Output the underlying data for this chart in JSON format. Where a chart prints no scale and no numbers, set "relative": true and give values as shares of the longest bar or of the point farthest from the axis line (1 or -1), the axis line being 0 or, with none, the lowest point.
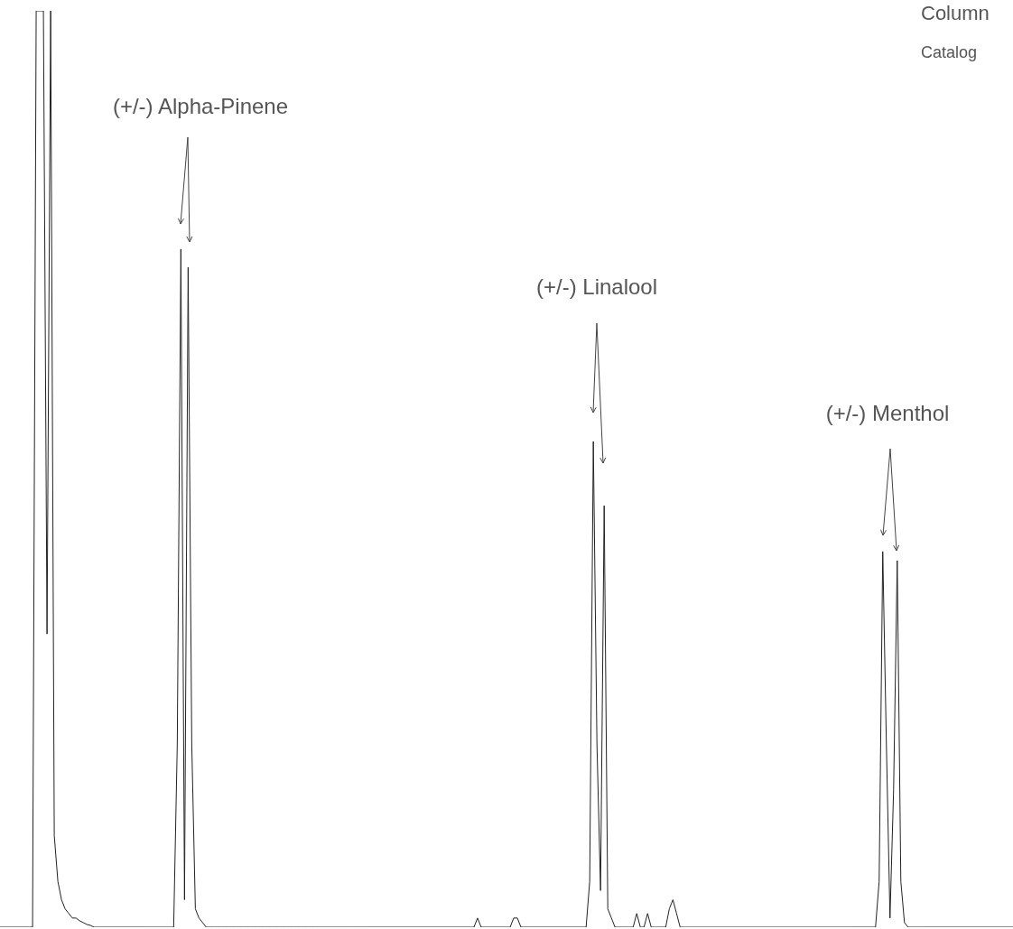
{
  "chart_data": {
    "type": "line",
    "relative": true,
    "color": "#222222",
    "annotations": [
      "(+/-) Alpha-Pinene",
      "(+/-) Linalool",
      "(+/-) Menthol",
      "Column",
      "Catalog"
    ],
    "categories": [
      null,
      null,
      null,
      null,
      null,
      null,
      null,
      null,
      null,
      null,
      null,
      null,
      null,
      null,
      null,
      null,
      null,
      null,
      null,
      null,
      null,
      null,
      null,
      null,
      null,
      null,
      null,
      null,
      null,
      null,
      null,
      null,
      null,
      null,
      null,
      null,
      null,
      null,
      null,
      null,
      null,
      null,
      null,
      null,
      null,
      null,
      null,
      null,
      null,
      null,
      null,
      null,
      null,
      null,
      null,
      null,
      null,
      null,
      null,
      null,
      null,
      null,
      null,
      null,
      null,
      null,
      null,
      null,
      null,
      null,
      null,
      null,
      null,
      null,
      null,
      null,
      null,
      null,
      null,
      null,
      null,
      null,
      null,
      null,
      null,
      null,
      null,
      null,
      null,
      null,
      null,
      null,
      null,
      null,
      null,
      null,
      null,
      null,
      null,
      null,
      null,
      null,
      null,
      null,
      null,
      null,
      null,
      null,
      null,
      null,
      null,
      null,
      null,
      null,
      null,
      null,
      null,
      null,
      null,
      null,
      null,
      null,
      null,
      null,
      null,
      null,
      null,
      null,
      null,
      null,
      null,
      null,
      null,
      null,
      null,
      null,
      null,
      null,
      null,
      null,
      null,
      null,
      null,
      null,
      null,
      null,
      null,
      null,
      null,
      null,
      null,
      null,
      null,
      null,
      null,
      null,
      null,
      null,
      null,
      null,
      null,
      null,
      null,
      null,
      null,
      null,
      null,
      null,
      null,
      null,
      null,
      null,
      null,
      null,
      null,
      null,
      null,
      null,
      null,
      null,
      null,
      null,
      null,
      null,
      null,
      null,
      null,
      null,
      null,
      null,
      null,
      null,
      null,
      null,
      null,
      null,
      null,
      null,
      null,
      null,
      null,
      null,
      null,
      null,
      null,
      null,
      null,
      null,
      null,
      null,
      null,
      null,
      null,
      null,
      null,
      null,
      null,
      null,
      null,
      null,
      null,
      null,
      null,
      null,
      null,
      null,
      null,
      null,
      null,
      null,
      null,
      null,
      null,
      null,
      null,
      null,
      null,
      null,
      null,
      null,
      null,
      null,
      null,
      null,
      null,
      null,
      null,
      null,
      null,
      null,
      null,
      null,
      null,
      null,
      null,
      null,
      null,
      null,
      null,
      null,
      null,
      null,
      null,
      null,
      null,
      null,
      null,
      null,
      null,
      null,
      null,
      null,
      null,
      null,
      null,
      null,
      null,
      null,
      null,
      null,
      null
    ],
    "values": [
      0,
      0,
      0,
      0,
      0,
      0,
      0,
      0,
      0,
      0,
      1,
      1,
      1,
      0.32,
      1,
      0.1,
      0.05,
      0.03,
      0.02,
      0.015,
      0.01,
      0.01,
      0.007,
      0.005,
      0.003,
      0.002,
      0,
      0,
      0,
      0,
      0,
      0,
      0,
      0,
      0,
      0,
      0,
      0,
      0,
      0,
      0,
      0,
      0,
      0,
      0,
      0,
      0,
      0,
      0,
      0.2,
      0.74,
      0.03,
      0.72,
      0.2,
      0.02,
      0.01,
      0.005,
      0,
      0,
      0,
      0,
      0,
      0,
      0,
      0,
      0,
      0,
      0,
      0,
      0,
      0,
      0,
      0,
      0,
      0,
      0,
      0,
      0,
      0,
      0,
      0,
      0,
      0,
      0,
      0,
      0,
      0,
      0,
      0,
      0,
      0,
      0,
      0,
      0,
      0,
      0,
      0,
      0,
      0,
      0,
      0,
      0,
      0,
      0,
      0,
      0,
      0,
      0,
      0,
      0,
      0,
      0,
      0,
      0,
      0,
      0,
      0,
      0,
      0,
      0,
      0,
      0,
      0,
      0,
      0,
      0,
      0,
      0,
      0,
      0,
      0,
      0,
      0.01,
      0,
      0,
      0,
      0,
      0,
      0,
      0,
      0,
      0,
      0.01,
      0.01,
      0,
      0,
      0,
      0,
      0,
      0,
      0,
      0,
      0,
      0,
      0,
      0,
      0,
      0,
      0,
      0,
      0,
      0,
      0,
      0.05,
      0.53,
      0.2,
      0.04,
      0.46,
      0.02,
      0.01,
      0,
      0,
      0,
      0,
      0,
      0,
      0.015,
      0,
      0,
      0.015,
      0,
      0,
      0,
      0,
      0,
      0.02,
      0.03,
      0.015,
      0,
      0,
      0,
      0,
      0,
      0,
      0,
      0,
      0,
      0,
      0,
      0,
      0,
      0,
      0,
      0,
      0,
      0,
      0,
      0,
      0,
      0,
      0,
      0,
      0,
      0,
      0,
      0,
      0,
      0,
      0,
      0,
      0,
      0,
      0,
      0,
      0,
      0,
      0,
      0,
      0,
      0,
      0,
      0,
      0,
      0,
      0,
      0,
      0,
      0,
      0,
      0,
      0,
      0,
      0,
      0.05,
      0.41,
      0.2,
      0.01,
      0.15,
      0.4,
      0.05,
      0.005,
      0,
      0,
      0,
      0,
      0,
      0,
      0,
      0,
      0,
      0,
      0,
      0,
      0,
      0,
      0,
      0,
      0,
      0,
      0,
      0,
      0,
      0,
      0,
      0,
      0,
      0,
      0,
      0,
      0,
      0
    ]
  }
}
